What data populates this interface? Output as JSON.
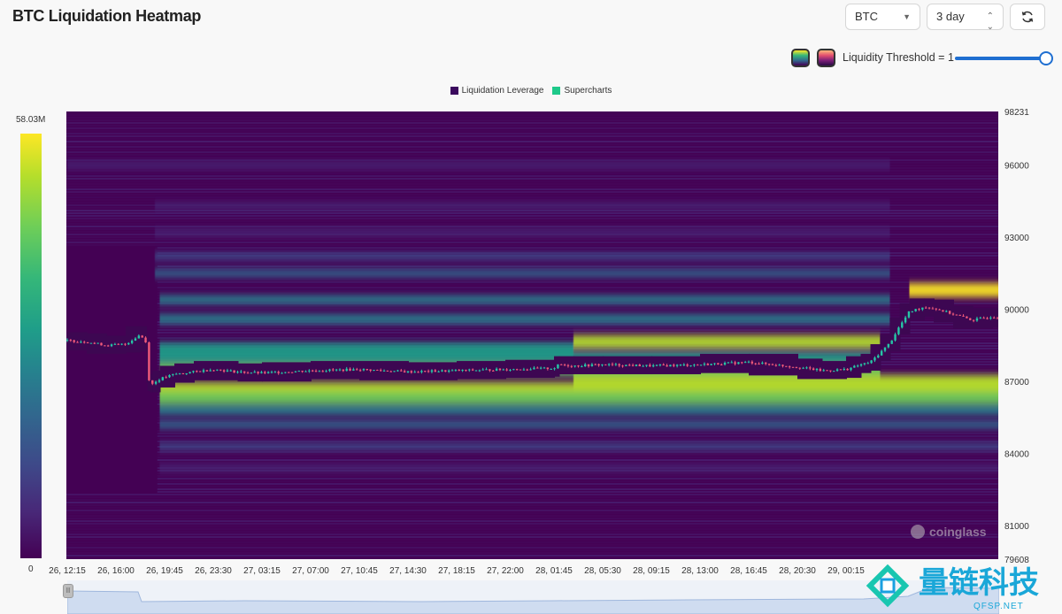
{
  "header": {
    "title": "BTC Liquidation Heatmap",
    "coin_select": "BTC",
    "range_select": "3 day",
    "threshold_label": "Liquidity Threshold = 1"
  },
  "legend": {
    "items": [
      {
        "label": "Liquidation Leverage",
        "color": "#3b0a5e"
      },
      {
        "label": "Supercharts",
        "color": "#1ec98a"
      }
    ]
  },
  "colorbar": {
    "max_label": "58.03M",
    "min_label": "0"
  },
  "watermarks": {
    "chart_logo": "coinglass",
    "site_logo_cn": "量链科技",
    "site_logo_en": "QFSP.NET"
  },
  "chart_data": {
    "type": "heatmap",
    "title": "",
    "y_axis": {
      "ticks": [
        "98231",
        "96000",
        "93000",
        "90000",
        "87000",
        "84000",
        "81000",
        "79608"
      ],
      "range": [
        79608,
        98231
      ]
    },
    "x_axis": {
      "ticks": [
        "26, 12:15",
        "26, 16:00",
        "26, 19:45",
        "26, 23:30",
        "27, 03:15",
        "27, 07:00",
        "27, 10:45",
        "27, 14:30",
        "27, 18:15",
        "27, 22:00",
        "28, 01:45",
        "28, 05:30",
        "28, 09:15",
        "28, 13:00",
        "28, 16:45",
        "28, 20:30",
        "29, 00:15"
      ]
    },
    "colorscale": [
      "#440154",
      "#482878",
      "#3e4989",
      "#31688e",
      "#26828e",
      "#1f9e89",
      "#35b779",
      "#6ece58",
      "#b5de2b",
      "#fde725"
    ],
    "value_range": [
      0,
      58.03
    ],
    "liquidity_bands": [
      {
        "price": 96000,
        "start_tick": 0,
        "end_tick": 16.9,
        "intensity": 0.1
      },
      {
        "price": 94300,
        "start_tick": 1.8,
        "end_tick": 16.9,
        "intensity": 0.12
      },
      {
        "price": 93200,
        "start_tick": 1.8,
        "end_tick": 16.9,
        "intensity": 0.16
      },
      {
        "price": 92200,
        "start_tick": 1.8,
        "end_tick": 16.9,
        "intensity": 0.22
      },
      {
        "price": 91500,
        "start_tick": 1.8,
        "end_tick": 16.9,
        "intensity": 0.28
      },
      {
        "price": 90800,
        "start_tick": 17.3,
        "end_tick": 19.2,
        "intensity": 0.98
      },
      {
        "price": 90400,
        "start_tick": 1.9,
        "end_tick": 16.9,
        "intensity": 0.4
      },
      {
        "price": 89600,
        "start_tick": 1.9,
        "end_tick": 16.9,
        "intensity": 0.48
      },
      {
        "price": 88650,
        "start_tick": 10.4,
        "end_tick": 16.7,
        "intensity": 0.9
      },
      {
        "price": 88400,
        "start_tick": 1.9,
        "end_tick": 10.4,
        "intensity": 0.55
      },
      {
        "price": 88000,
        "start_tick": 1.9,
        "end_tick": 16.7,
        "intensity": 0.58
      },
      {
        "price": 87500,
        "start_tick": 1.9,
        "end_tick": 16.7,
        "intensity": 0.75
      },
      {
        "price": 87000,
        "start_tick": 10.4,
        "end_tick": 19.2,
        "intensity": 0.88
      },
      {
        "price": 86700,
        "start_tick": 1.9,
        "end_tick": 19.2,
        "intensity": 0.85
      },
      {
        "price": 86300,
        "start_tick": 1.9,
        "end_tick": 19.2,
        "intensity": 0.78
      },
      {
        "price": 85800,
        "start_tick": 1.9,
        "end_tick": 19.2,
        "intensity": 0.45
      },
      {
        "price": 85200,
        "start_tick": 1.9,
        "end_tick": 19.2,
        "intensity": 0.32
      },
      {
        "price": 84300,
        "start_tick": 1.9,
        "end_tick": 19.2,
        "intensity": 0.22
      },
      {
        "price": 83400,
        "start_tick": 1.9,
        "end_tick": 19.2,
        "intensity": 0.12
      }
    ],
    "price_series": {
      "name": "BTC price",
      "x_tick_index": [
        0,
        0.4,
        0.8,
        1.2,
        1.5,
        1.62,
        1.65,
        1.7,
        1.75,
        1.9,
        2.2,
        2.6,
        3.0,
        3.5,
        4,
        5,
        6,
        7,
        8,
        9,
        10,
        10.1,
        10.4,
        11,
        12,
        13,
        14,
        15,
        15.5,
        16,
        16.3,
        16.5,
        16.7,
        16.9,
        17.1,
        17.3,
        17.6,
        17.8,
        18.2,
        18.6,
        19.0,
        19.2
      ],
      "price": [
        88700,
        88650,
        88500,
        88550,
        88950,
        88600,
        87300,
        86950,
        86900,
        87100,
        87300,
        87400,
        87500,
        87400,
        87350,
        87450,
        87500,
        87400,
        87450,
        87500,
        87550,
        87700,
        87650,
        87700,
        87650,
        87700,
        87800,
        87600,
        87450,
        87500,
        87700,
        87800,
        88200,
        88600,
        89300,
        89900,
        90100,
        90050,
        89800,
        89550,
        89700,
        89600
      ]
    }
  }
}
